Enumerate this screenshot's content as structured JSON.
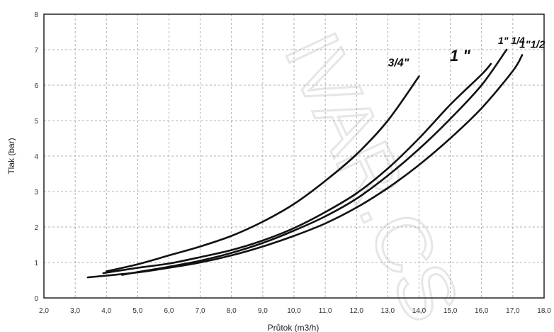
{
  "chart_data": {
    "type": "line",
    "title": "",
    "xlabel": "Průtok (m3/h)",
    "ylabel": "Tlak (bar)",
    "xlim": [
      2.0,
      18.0
    ],
    "ylim": [
      0,
      8
    ],
    "x_ticks": [
      "2,0",
      "3,0",
      "4,0",
      "5,0",
      "6,0",
      "7,0",
      "8,0",
      "9,0",
      "10,0",
      "11,0",
      "12,0",
      "13,0",
      "14,0",
      "15,0",
      "16,0",
      "17,0",
      "18,0"
    ],
    "y_ticks": [
      "0",
      "1",
      "2",
      "3",
      "4",
      "5",
      "6",
      "7",
      "8"
    ],
    "grid": true,
    "series": [
      {
        "name": "3/4\"",
        "points": [
          [
            4.0,
            0.75
          ],
          [
            5.0,
            0.95
          ],
          [
            6.0,
            1.2
          ],
          [
            7.0,
            1.45
          ],
          [
            8.0,
            1.75
          ],
          [
            9.0,
            2.15
          ],
          [
            10.0,
            2.65
          ],
          [
            11.0,
            3.3
          ],
          [
            12.0,
            4.05
          ],
          [
            13.0,
            5.0
          ],
          [
            14.0,
            6.25
          ]
        ]
      },
      {
        "name": "1 \"",
        "points": [
          [
            3.9,
            0.7
          ],
          [
            5.0,
            0.85
          ],
          [
            6.0,
            0.97
          ],
          [
            7.0,
            1.15
          ],
          [
            8.0,
            1.35
          ],
          [
            9.0,
            1.62
          ],
          [
            10.0,
            1.97
          ],
          [
            11.0,
            2.42
          ],
          [
            12.0,
            2.95
          ],
          [
            13.0,
            3.65
          ],
          [
            14.0,
            4.5
          ],
          [
            15.0,
            5.45
          ],
          [
            16.0,
            6.3
          ],
          [
            16.3,
            6.6
          ]
        ]
      },
      {
        "name": "1\" 1/4",
        "points": [
          [
            4.5,
            0.65
          ],
          [
            5.0,
            0.73
          ],
          [
            6.0,
            0.88
          ],
          [
            7.0,
            1.05
          ],
          [
            8.0,
            1.27
          ],
          [
            9.0,
            1.55
          ],
          [
            10.0,
            1.9
          ],
          [
            11.0,
            2.3
          ],
          [
            12.0,
            2.8
          ],
          [
            13.0,
            3.45
          ],
          [
            14.0,
            4.2
          ],
          [
            15.0,
            5.05
          ],
          [
            16.0,
            6.0
          ],
          [
            16.8,
            7.0
          ]
        ]
      },
      {
        "name": "1\"1/2",
        "points": [
          [
            3.4,
            0.58
          ],
          [
            4.0,
            0.63
          ],
          [
            5.0,
            0.72
          ],
          [
            6.0,
            0.85
          ],
          [
            7.0,
            1.0
          ],
          [
            8.0,
            1.2
          ],
          [
            9.0,
            1.45
          ],
          [
            10.0,
            1.75
          ],
          [
            11.0,
            2.1
          ],
          [
            12.0,
            2.55
          ],
          [
            13.0,
            3.1
          ],
          [
            14.0,
            3.75
          ],
          [
            15.0,
            4.5
          ],
          [
            16.0,
            5.35
          ],
          [
            17.0,
            6.4
          ],
          [
            17.3,
            6.85
          ]
        ]
      }
    ]
  }
}
